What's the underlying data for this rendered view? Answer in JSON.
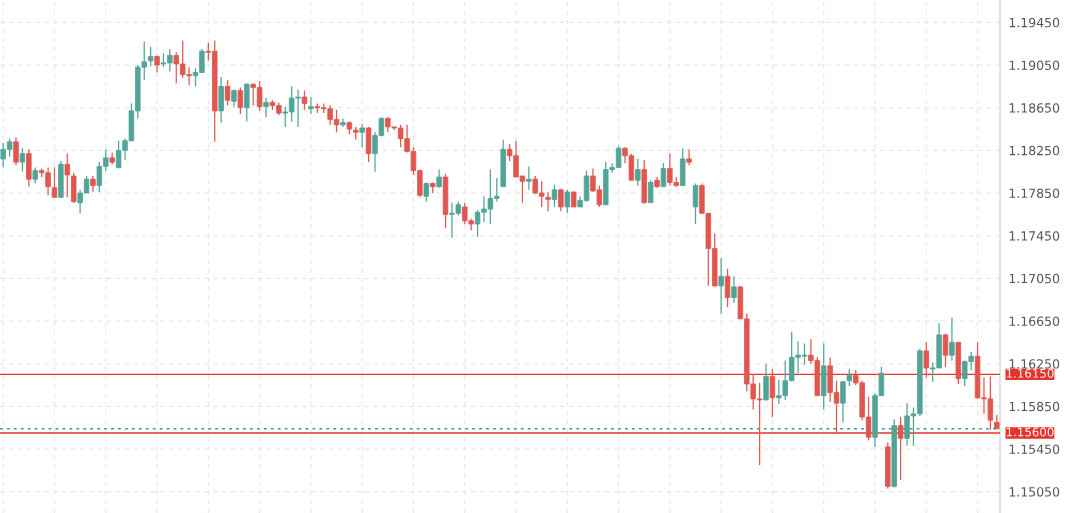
{
  "chart_data": {
    "type": "candlestick",
    "categories": [
      null,
      null,
      null,
      null,
      null,
      null,
      null,
      null,
      null,
      null,
      null,
      null,
      null,
      null,
      null,
      null,
      null,
      null,
      null,
      null,
      null,
      null,
      null,
      null,
      null,
      null,
      null,
      null,
      null,
      null,
      null,
      null,
      null,
      null,
      null,
      null,
      null,
      null,
      null,
      null,
      null,
      null,
      null,
      null,
      null,
      null,
      null,
      null,
      null,
      null,
      null,
      null,
      null,
      null,
      null,
      null,
      null,
      null,
      null,
      null,
      null,
      null,
      null,
      null,
      null,
      null,
      null,
      null,
      null,
      null,
      null,
      null,
      null,
      null,
      null,
      null,
      null,
      null,
      null,
      null,
      null,
      null,
      null,
      null,
      null,
      null,
      null,
      null,
      null,
      null,
      null,
      null,
      null,
      null,
      null,
      null,
      null,
      null,
      null,
      null,
      null,
      null,
      null,
      null,
      null,
      null,
      null,
      null,
      null,
      null,
      null,
      null,
      null,
      null,
      null,
      null,
      null,
      null,
      null,
      null,
      null,
      null,
      null,
      null,
      null,
      null,
      null,
      null,
      null,
      null,
      null,
      null,
      null,
      null,
      null,
      null,
      null,
      null,
      null,
      null,
      null,
      null,
      null,
      null,
      null,
      null,
      null,
      null,
      null,
      null,
      null,
      null,
      null,
      null,
      null,
      null
    ],
    "ohlc": [
      [
        1.1817,
        1.1832,
        1.1809,
        1.1826
      ],
      [
        1.1826,
        1.1836,
        1.1819,
        1.1833
      ],
      [
        1.1833,
        1.1837,
        1.1811,
        1.1814
      ],
      [
        1.1814,
        1.1827,
        1.1805,
        1.1822
      ],
      [
        1.1822,
        1.1826,
        1.1791,
        1.1798
      ],
      [
        1.1798,
        1.1809,
        1.1794,
        1.1806
      ],
      [
        1.1806,
        1.1808,
        1.18,
        1.1804
      ],
      [
        1.1804,
        1.1809,
        1.1783,
        1.1791
      ],
      [
        1.179,
        1.1809,
        1.1781,
        1.1781
      ],
      [
        1.1781,
        1.1815,
        1.1781,
        1.1812
      ],
      [
        1.1812,
        1.1822,
        1.1781,
        1.1802
      ],
      [
        1.1801,
        1.1804,
        1.1776,
        1.1777
      ],
      [
        1.1776,
        1.1788,
        1.1766,
        1.1785
      ],
      [
        1.1785,
        1.1801,
        1.1785,
        1.1798
      ],
      [
        1.1798,
        1.1801,
        1.1786,
        1.1792
      ],
      [
        1.1792,
        1.1814,
        1.1786,
        1.181
      ],
      [
        1.181,
        1.1826,
        1.1806,
        1.1818
      ],
      [
        1.1818,
        1.1823,
        1.1812,
        1.1814
      ],
      [
        1.1809,
        1.1834,
        1.1808,
        1.1825
      ],
      [
        1.1825,
        1.1836,
        1.1816,
        1.1834
      ],
      [
        1.1834,
        1.1869,
        1.1834,
        1.1862
      ],
      [
        1.1862,
        1.1905,
        1.1855,
        1.1903
      ],
      [
        1.1903,
        1.1927,
        1.1891,
        1.1908
      ],
      [
        1.1909,
        1.1922,
        1.1904,
        1.1913
      ],
      [
        1.1913,
        1.1914,
        1.1898,
        1.1905
      ],
      [
        1.1906,
        1.1916,
        1.1903,
        1.1907
      ],
      [
        1.1907,
        1.192,
        1.1899,
        1.1914
      ],
      [
        1.1914,
        1.1917,
        1.1888,
        1.1906
      ],
      [
        1.1906,
        1.1928,
        1.1893,
        1.1896
      ],
      [
        1.1896,
        1.1903,
        1.1886,
        1.1895
      ],
      [
        1.1895,
        1.1902,
        1.1885,
        1.1898
      ],
      [
        1.1898,
        1.192,
        1.1898,
        1.1918
      ],
      [
        1.1918,
        1.1926,
        1.1909,
        1.1917
      ],
      [
        1.1918,
        1.1928,
        1.1833,
        1.1862
      ],
      [
        1.1862,
        1.1894,
        1.1851,
        1.1885
      ],
      [
        1.1885,
        1.1891,
        1.1867,
        1.1872
      ],
      [
        1.1871,
        1.1882,
        1.1866,
        1.1881
      ],
      [
        1.1881,
        1.1884,
        1.1859,
        1.1865
      ],
      [
        1.1865,
        1.1888,
        1.1852,
        1.1887
      ],
      [
        1.1887,
        1.1888,
        1.1867,
        1.1884
      ],
      [
        1.1884,
        1.189,
        1.1862,
        1.1866
      ],
      [
        1.1866,
        1.1874,
        1.1856,
        1.187
      ],
      [
        1.187,
        1.1872,
        1.1863,
        1.1867
      ],
      [
        1.1867,
        1.187,
        1.1858,
        1.186
      ],
      [
        1.186,
        1.1866,
        1.1847,
        1.1861
      ],
      [
        1.1861,
        1.1885,
        1.1852,
        1.1874
      ],
      [
        1.1874,
        1.1882,
        1.1847,
        1.1875
      ],
      [
        1.1875,
        1.1881,
        1.1863,
        1.1869
      ],
      [
        1.1864,
        1.1875,
        1.1859,
        1.1866
      ],
      [
        1.1866,
        1.1869,
        1.186,
        1.1865
      ],
      [
        1.1865,
        1.1869,
        1.186,
        1.1864
      ],
      [
        1.1864,
        1.1867,
        1.1849,
        1.1854
      ],
      [
        1.1854,
        1.1863,
        1.1842,
        1.1849
      ],
      [
        1.1849,
        1.1855,
        1.1847,
        1.1851
      ],
      [
        1.1851,
        1.1852,
        1.184,
        1.1845
      ],
      [
        1.1844,
        1.1847,
        1.1835,
        1.1842
      ],
      [
        1.1842,
        1.185,
        1.1828,
        1.1846
      ],
      [
        1.1846,
        1.1847,
        1.1814,
        1.1822
      ],
      [
        1.1822,
        1.1842,
        1.1805,
        1.1839
      ],
      [
        1.1839,
        1.1856,
        1.1838,
        1.1855
      ],
      [
        1.1855,
        1.1856,
        1.1842,
        1.1847
      ],
      [
        1.1847,
        1.1847,
        1.1844,
        1.1846
      ],
      [
        1.1846,
        1.1849,
        1.1828,
        1.1836
      ],
      [
        1.1836,
        1.1849,
        1.1823,
        1.1824
      ],
      [
        1.1824,
        1.1828,
        1.1802,
        1.1806
      ],
      [
        1.1806,
        1.1807,
        1.1781,
        1.1783
      ],
      [
        1.1782,
        1.1795,
        1.1777,
        1.1794
      ],
      [
        1.1794,
        1.1795,
        1.1785,
        1.1791
      ],
      [
        1.1791,
        1.1807,
        1.179,
        1.18
      ],
      [
        1.18,
        1.1803,
        1.1752,
        1.1765
      ],
      [
        1.1765,
        1.1776,
        1.1743,
        1.1766
      ],
      [
        1.1766,
        1.1777,
        1.1764,
        1.1774
      ],
      [
        1.1772,
        1.1776,
        1.1756,
        1.1759
      ],
      [
        1.1759,
        1.1761,
        1.175,
        1.1756
      ],
      [
        1.1756,
        1.1769,
        1.1744,
        1.1767
      ],
      [
        1.1767,
        1.1782,
        1.1758,
        1.177
      ],
      [
        1.177,
        1.1807,
        1.1756,
        1.178
      ],
      [
        1.178,
        1.1799,
        1.1777,
        1.1782
      ],
      [
        1.1791,
        1.1835,
        1.1791,
        1.1826
      ],
      [
        1.1826,
        1.1831,
        1.1815,
        1.182
      ],
      [
        1.182,
        1.1834,
        1.18,
        1.18
      ],
      [
        1.1801,
        1.1801,
        1.1776,
        1.1796
      ],
      [
        1.1796,
        1.181,
        1.1788,
        1.1798
      ],
      [
        1.1798,
        1.1801,
        1.1784,
        1.1785
      ],
      [
        1.1785,
        1.1796,
        1.1772,
        1.1782
      ],
      [
        1.1781,
        1.1786,
        1.1768,
        1.1779
      ],
      [
        1.1779,
        1.1793,
        1.1772,
        1.1788
      ],
      [
        1.1788,
        1.1789,
        1.1768,
        1.1772
      ],
      [
        1.1772,
        1.1788,
        1.1766,
        1.1786
      ],
      [
        1.1786,
        1.1786,
        1.1772,
        1.1772
      ],
      [
        1.1772,
        1.1782,
        1.1772,
        1.1778
      ],
      [
        1.1778,
        1.1806,
        1.1777,
        1.1801
      ],
      [
        1.1801,
        1.1808,
        1.1786,
        1.1787
      ],
      [
        1.1788,
        1.1792,
        1.1772,
        1.1774
      ],
      [
        1.1774,
        1.1814,
        1.1774,
        1.1807
      ],
      [
        1.1807,
        1.1813,
        1.1804,
        1.1809
      ],
      [
        1.1809,
        1.1829,
        1.1809,
        1.1827
      ],
      [
        1.1827,
        1.1828,
        1.1813,
        1.182
      ],
      [
        1.182,
        1.1822,
        1.1797,
        1.1797
      ],
      [
        1.1797,
        1.1817,
        1.1792,
        1.1807
      ],
      [
        1.1807,
        1.1816,
        1.1775,
        1.1776
      ],
      [
        1.1776,
        1.1797,
        1.1776,
        1.1795
      ],
      [
        1.1797,
        1.18,
        1.179,
        1.1791
      ],
      [
        1.1791,
        1.1813,
        1.1791,
        1.1808
      ],
      [
        1.1808,
        1.1822,
        1.1792,
        1.1795
      ],
      [
        1.1795,
        1.18,
        1.1791,
        1.1792
      ],
      [
        1.1792,
        1.1827,
        1.1792,
        1.1817
      ],
      [
        1.1817,
        1.1826,
        1.1811,
        1.1814
      ],
      [
        1.1772,
        1.1794,
        1.1756,
        1.1792
      ],
      [
        1.1792,
        1.1794,
        1.1766,
        1.1766
      ],
      [
        1.1766,
        1.1766,
        1.1698,
        1.1733
      ],
      [
        1.1733,
        1.1747,
        1.1697,
        1.1698
      ],
      [
        1.1698,
        1.1724,
        1.1672,
        1.1707
      ],
      [
        1.1707,
        1.1714,
        1.1678,
        1.1687
      ],
      [
        1.1687,
        1.1707,
        1.1682,
        1.1697
      ],
      [
        1.1697,
        1.1698,
        1.1667,
        1.1667
      ],
      [
        1.1667,
        1.1672,
        1.1599,
        1.1606
      ],
      [
        1.1606,
        1.1615,
        1.1582,
        1.1592
      ],
      [
        1.1592,
        1.1607,
        1.153,
        1.1591
      ],
      [
        1.1591,
        1.1625,
        1.1591,
        1.1613
      ],
      [
        1.1613,
        1.162,
        1.1575,
        1.1593
      ],
      [
        1.1593,
        1.161,
        1.1587,
        1.1595
      ],
      [
        1.1595,
        1.1628,
        1.1591,
        1.1609
      ],
      [
        1.1609,
        1.1655,
        1.1609,
        1.1631
      ],
      [
        1.1631,
        1.1646,
        1.1616,
        1.1633
      ],
      [
        1.1632,
        1.1644,
        1.1624,
        1.1633
      ],
      [
        1.1633,
        1.1648,
        1.1625,
        1.1628
      ],
      [
        1.1628,
        1.1631,
        1.1595,
        1.1595
      ],
      [
        1.1595,
        1.1644,
        1.1582,
        1.1623
      ],
      [
        1.1623,
        1.1631,
        1.1589,
        1.1598
      ],
      [
        1.1598,
        1.1609,
        1.156,
        1.1588
      ],
      [
        1.1588,
        1.1609,
        1.157,
        1.1608
      ],
      [
        1.1609,
        1.162,
        1.1604,
        1.1614
      ],
      [
        1.1614,
        1.1619,
        1.1605,
        1.1607
      ],
      [
        1.1607,
        1.1609,
        1.1572,
        1.1575
      ],
      [
        1.1575,
        1.1594,
        1.1553,
        1.1556
      ],
      [
        1.1556,
        1.1597,
        1.1547,
        1.1595
      ],
      [
        1.1595,
        1.1622,
        1.1595,
        1.1616
      ],
      [
        1.1547,
        1.1551,
        1.1508,
        1.151
      ],
      [
        1.151,
        1.1573,
        1.1509,
        1.1567
      ],
      [
        1.1567,
        1.1575,
        1.1516,
        1.1555
      ],
      [
        1.1555,
        1.1588,
        1.1548,
        1.1576
      ],
      [
        1.1576,
        1.1584,
        1.1548,
        1.1578
      ],
      [
        1.1578,
        1.1639,
        1.1576,
        1.1637
      ],
      [
        1.1637,
        1.1645,
        1.1612,
        1.1621
      ],
      [
        1.162,
        1.1626,
        1.1608,
        1.1621
      ],
      [
        1.1621,
        1.1663,
        1.1621,
        1.1652
      ],
      [
        1.1652,
        1.1653,
        1.1622,
        1.1633
      ],
      [
        1.1633,
        1.1668,
        1.1628,
        1.1645
      ],
      [
        1.1645,
        1.1645,
        1.1606,
        1.1611
      ],
      [
        1.1611,
        1.1628,
        1.1604,
        1.1627
      ],
      [
        1.1627,
        1.1636,
        1.1619,
        1.1632
      ],
      [
        1.1632,
        1.1645,
        1.1592,
        1.1593
      ],
      [
        1.1593,
        1.1612,
        1.1578,
        1.1592
      ],
      [
        1.1592,
        1.1613,
        1.1563,
        1.1572
      ],
      [
        1.157,
        1.1577,
        1.1564,
        1.1564
      ]
    ],
    "colors": [
      "#52a497",
      "#52a497",
      "#e0574f",
      "#52a497",
      "#e0574f",
      "#52a497",
      "#e0574f",
      "#e0574f",
      "#e0574f",
      "#52a497",
      "#e0574f",
      "#e0574f",
      "#52a497",
      "#52a497",
      "#e0574f",
      "#52a497",
      "#52a497",
      "#e0574f",
      "#52a497",
      "#52a497",
      "#52a497",
      "#52a497",
      "#52a497",
      "#52a497",
      "#e0574f",
      "#52a497",
      "#52a497",
      "#e0574f",
      "#e0574f",
      "#e0574f",
      "#52a497",
      "#52a497",
      "#e0574f",
      "#e0574f",
      "#52a497",
      "#e0574f",
      "#52a497",
      "#e0574f",
      "#52a497",
      "#e0574f",
      "#e0574f",
      "#52a497",
      "#e0574f",
      "#e0574f",
      "#52a497",
      "#52a497",
      "#52a497",
      "#e0574f",
      "#52a497",
      "#e0574f",
      "#e0574f",
      "#e0574f",
      "#e0574f",
      "#52a497",
      "#e0574f",
      "#e0574f",
      "#52a497",
      "#e0574f",
      "#52a497",
      "#52a497",
      "#e0574f",
      "#e0574f",
      "#e0574f",
      "#e0574f",
      "#e0574f",
      "#e0574f",
      "#52a497",
      "#e0574f",
      "#52a497",
      "#e0574f",
      "#52a497",
      "#52a497",
      "#e0574f",
      "#e0574f",
      "#52a497",
      "#52a497",
      "#52a497",
      "#52a497",
      "#52a497",
      "#e0574f",
      "#e0574f",
      "#e0574f",
      "#52a497",
      "#e0574f",
      "#e0574f",
      "#e0574f",
      "#52a497",
      "#e0574f",
      "#52a497",
      "#e0574f",
      "#52a497",
      "#52a497",
      "#e0574f",
      "#e0574f",
      "#52a497",
      "#52a497",
      "#52a497",
      "#e0574f",
      "#e0574f",
      "#52a497",
      "#e0574f",
      "#52a497",
      "#e0574f",
      "#52a497",
      "#e0574f",
      "#e0574f",
      "#52a497",
      "#e0574f",
      "#52a497",
      "#e0574f",
      "#e0574f",
      "#e0574f",
      "#52a497",
      "#e0574f",
      "#52a497",
      "#e0574f",
      "#e0574f",
      "#e0574f",
      "#e0574f",
      "#52a497",
      "#e0574f",
      "#52a497",
      "#52a497",
      "#52a497",
      "#52a497",
      "#52a497",
      "#e0574f",
      "#e0574f",
      "#52a497",
      "#e0574f",
      "#e0574f",
      "#52a497",
      "#52a497",
      "#e0574f",
      "#e0574f",
      "#e0574f",
      "#52a497",
      "#52a497",
      "#e0574f",
      "#52a497",
      "#e0574f",
      "#52a497",
      "#52a497",
      "#52a497",
      "#e0574f",
      "#52a497",
      "#52a497",
      "#e0574f",
      "#52a497",
      "#e0574f",
      "#52a497",
      "#52a497",
      "#e0574f",
      "#e0574f",
      "#e0574f",
      "#e0574f"
    ],
    "ylim": [
      1.1485,
      1.1966
    ],
    "yticks": [
      {
        "value": 1.1505,
        "label": "1.15050"
      },
      {
        "value": 1.1545,
        "label": "1.15450"
      },
      {
        "value": 1.1585,
        "label": "1.15850"
      },
      {
        "value": 1.1625,
        "label": "1.16250"
      },
      {
        "value": 1.1665,
        "label": "1.16650"
      },
      {
        "value": 1.1705,
        "label": "1.17050"
      },
      {
        "value": 1.1745,
        "label": "1.17450"
      },
      {
        "value": 1.1785,
        "label": "1.17850"
      },
      {
        "value": 1.1825,
        "label": "1.18250"
      },
      {
        "value": 1.1865,
        "label": "1.18650"
      },
      {
        "value": 1.1905,
        "label": "1.19050"
      },
      {
        "value": 1.1945,
        "label": "1.19450"
      }
    ],
    "ref_lines": [
      {
        "axis": "y",
        "value": 1.1615,
        "label": "1.16150",
        "color": "#e8322b",
        "line_style": "solid"
      },
      {
        "axis": "y",
        "value": 1.156,
        "label": "1.15600",
        "color": "#e8322b",
        "line_style": "solid"
      },
      {
        "axis": "y",
        "value": 1.1564,
        "color": "#3d9a8c",
        "line_style": "dotted"
      }
    ],
    "grid": true
  }
}
